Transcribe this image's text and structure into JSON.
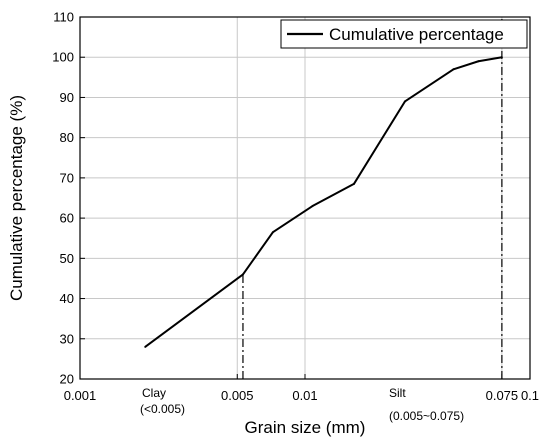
{
  "chart_data": {
    "type": "line",
    "title": "",
    "xlabel": "Grain size (mm)",
    "ylabel": "Cumulative percentage (%)",
    "x_scale": "log",
    "xlim": [
      0.001,
      0.1
    ],
    "ylim": [
      20,
      110
    ],
    "x_ticks": [
      {
        "value": 0.001,
        "label": "0.001"
      },
      {
        "value": 0.005,
        "label": "0.005"
      },
      {
        "value": 0.01,
        "label": "0.01"
      },
      {
        "value": 0.075,
        "label": "0.075"
      },
      {
        "value": 0.1,
        "label": "0.1"
      }
    ],
    "y_ticks": [
      20,
      30,
      40,
      50,
      60,
      70,
      80,
      90,
      100,
      110
    ],
    "grid": true,
    "legend": {
      "placement": "top-right",
      "entries": [
        "Cumulative percentage"
      ]
    },
    "series": [
      {
        "name": "Cumulative percentage",
        "color": "#000000",
        "x": [
          0.00195,
          0.0053,
          0.0072,
          0.0108,
          0.0165,
          0.0278,
          0.0457,
          0.059,
          0.075
        ],
        "y": [
          28,
          46,
          56.5,
          63,
          68.5,
          89,
          97,
          99,
          100
        ]
      }
    ],
    "reference_lines": [
      {
        "x": 0.0053,
        "y_top": 46,
        "style": "dash-dot"
      },
      {
        "x": 0.075,
        "y_top": 110,
        "style": "dash-dot"
      }
    ],
    "annotations": [
      {
        "id": "clay",
        "lines": [
          "Clay",
          "(<0.005)"
        ]
      },
      {
        "id": "silt",
        "lines": [
          "Silt",
          "(0.005~0.075)"
        ]
      }
    ]
  }
}
